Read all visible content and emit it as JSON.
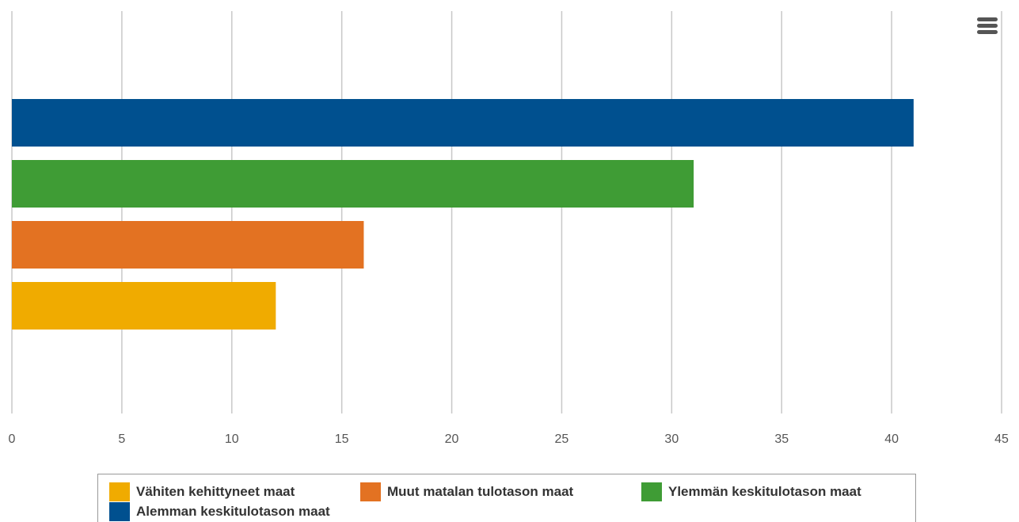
{
  "chart_data": {
    "type": "bar",
    "orientation": "horizontal",
    "title": "",
    "xlabel": "",
    "ylabel": "",
    "xlim": [
      0,
      45
    ],
    "x_ticks": [
      0,
      5,
      10,
      15,
      20,
      25,
      30,
      35,
      40,
      45
    ],
    "grid": true,
    "legend_position": "bottom",
    "series": [
      {
        "name": "Alemman keskitulotason maat",
        "value": 41,
        "color": "#00508f"
      },
      {
        "name": "Ylemmän keskitulotason maat",
        "value": 31,
        "color": "#3f9c35"
      },
      {
        "name": "Muut matalan tulotason maat",
        "value": 16,
        "color": "#e37222"
      },
      {
        "name": "Vähiten kehittyneet maat",
        "value": 12,
        "color": "#f0ab00"
      }
    ]
  },
  "legend": {
    "items": [
      {
        "label": "Vähiten kehittyneet maat",
        "color": "#f0ab00"
      },
      {
        "label": "Muut matalan tulotason maat",
        "color": "#e37222"
      },
      {
        "label": "Ylemmän keskitulotason maat",
        "color": "#3f9c35"
      },
      {
        "label": "Alemman keskitulotason maat",
        "color": "#00508f"
      }
    ]
  },
  "toolbar": {
    "menu_icon": "hamburger-menu-icon"
  }
}
